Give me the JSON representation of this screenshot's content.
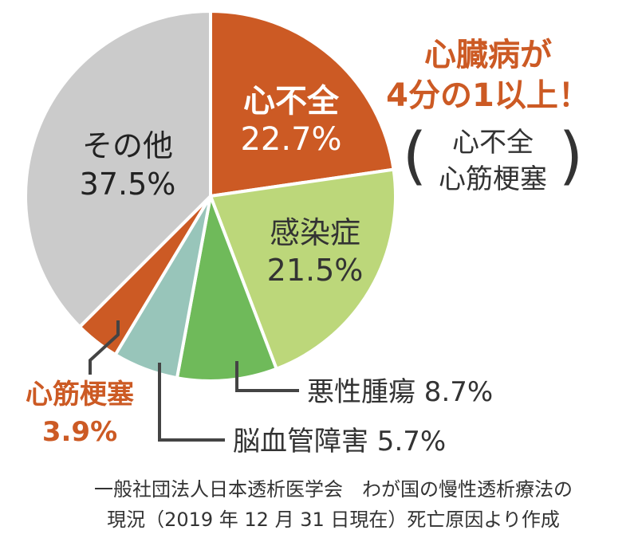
{
  "chart_data": {
    "type": "pie",
    "categories": [
      "心不全",
      "感染症",
      "悪性腫瘍",
      "脳血管障害",
      "心筋梗塞",
      "その他"
    ],
    "values": [
      22.7,
      21.5,
      8.7,
      5.7,
      3.9,
      37.5
    ],
    "value_labels": [
      "22.7%",
      "21.5%",
      "8.7%",
      "5.7%",
      "3.9%",
      "37.5%"
    ],
    "colors": [
      "#cc5a24",
      "#bcd77a",
      "#6fba5a",
      "#98c5ba",
      "#cc5a24",
      "#cbcbcb"
    ],
    "label_colors": [
      "#ffffff",
      "#333333",
      "#333333",
      "#333333",
      "#cc5a24",
      "#222222"
    ]
  },
  "labels": {
    "heart_failure": "心不全",
    "heart_failure_pct": "22.7%",
    "infection": "感染症",
    "infection_pct": "21.5%",
    "malignancy": "悪性腫瘍 8.7%",
    "cerebrovascular": "脳血管障害 5.7%",
    "mi": "心筋梗塞",
    "mi_pct": "3.9%",
    "other": "その他",
    "other_pct": "37.5%"
  },
  "callout": {
    "line1": "心臓病が",
    "line2": "4分の1以上！",
    "paren_open": "(",
    "paren_close": ")",
    "paren_line1": "心不全",
    "paren_line2": "心筋梗塞"
  },
  "source": {
    "line1": "一般社団法人日本透析医学会　わが国の慢性透析療法の",
    "line2": "現況（2019 年 12 月 31 日現在）死亡原因より作成"
  }
}
